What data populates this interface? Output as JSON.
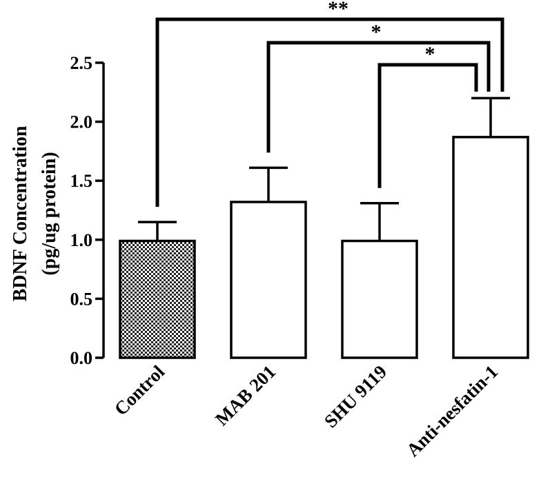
{
  "chart_data": {
    "type": "bar",
    "title": "",
    "ylabel_lines": [
      "BDNF Concentration",
      "(pg/ug protein)"
    ],
    "xlabel": "",
    "categories": [
      "Control",
      "MAB 201",
      "SHU 9119",
      "Anti-nesfatin-1"
    ],
    "values": [
      0.99,
      1.32,
      0.99,
      1.87
    ],
    "errors": [
      0.16,
      0.29,
      0.32,
      0.33
    ],
    "fills": [
      "checker",
      "white",
      "white",
      "white"
    ],
    "ylim": [
      0,
      2.5
    ],
    "yticks": [
      "0.0",
      "0.5",
      "1.0",
      "1.5",
      "2.0",
      "2.5"
    ],
    "significance": [
      {
        "from": 0,
        "to": 3,
        "label": "**"
      },
      {
        "from": 1,
        "to": 3,
        "label": "*"
      },
      {
        "from": 2,
        "to": 3,
        "label": "*"
      }
    ],
    "grid": false,
    "legend": "none"
  }
}
